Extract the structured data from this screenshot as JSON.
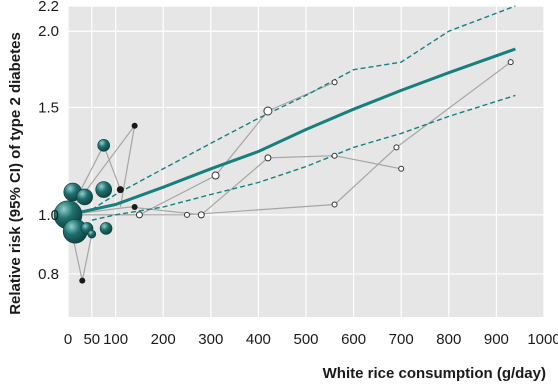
{
  "chart_data": {
    "type": "scatter",
    "xlabel": "White rice consumption (g/day)",
    "ylabel": "Relative risk (95% CI) of type 2 diabetes",
    "xlim": [
      0,
      1000
    ],
    "ylim": [
      0.68,
      2.2
    ],
    "y_scale": "log",
    "xticks": [
      0,
      50,
      100,
      200,
      300,
      400,
      500,
      600,
      700,
      800,
      900,
      1000
    ],
    "xtick_labels": [
      "0",
      "50",
      "100",
      "200",
      "300",
      "400",
      "500",
      "600",
      "700",
      "800",
      "900",
      "1000"
    ],
    "yticks": [
      0.8,
      1.0,
      1.5,
      2.0,
      2.2
    ],
    "ytick_labels": [
      "0.8",
      "1.0",
      "1.5",
      "2.0",
      "2.2"
    ],
    "grid": true,
    "background": "#e6e6e6",
    "colors": {
      "fit": "#17807e",
      "ci": "#17807e",
      "study_lines": "#a6a6a6",
      "bubble": "#1f6f6e",
      "bubble_highlight": "#8fd0cc",
      "small_marker": "#1a1a1a",
      "open_marker_fill": "#ffffff"
    },
    "fit": {
      "x": [
        0,
        100,
        200,
        300,
        400,
        500,
        600,
        700,
        800,
        940
      ],
      "y": [
        1.0,
        1.04,
        1.11,
        1.19,
        1.27,
        1.38,
        1.49,
        1.6,
        1.71,
        1.87
      ]
    },
    "ci_upper": {
      "x": [
        50,
        100,
        200,
        300,
        400,
        500,
        600,
        700,
        800,
        940
      ],
      "y": [
        1.02,
        1.08,
        1.19,
        1.31,
        1.44,
        1.57,
        1.73,
        1.78,
        2.0,
        2.2
      ]
    },
    "ci_lower": {
      "x": [
        50,
        100,
        200,
        300,
        400,
        500,
        600,
        700,
        800,
        940
      ],
      "y": [
        0.98,
        1.0,
        1.03,
        1.08,
        1.13,
        1.2,
        1.29,
        1.36,
        1.45,
        1.57
      ]
    },
    "studies": [
      {
        "points": [
          [
            0,
            1.0
          ],
          [
            130,
            1.03
          ],
          [
            280,
            1.0
          ],
          [
            420,
            1.24
          ],
          [
            560,
            1.25
          ],
          [
            700,
            1.19
          ]
        ]
      },
      {
        "points": [
          [
            0,
            1.0
          ],
          [
            150,
            1.0
          ],
          [
            310,
            1.16
          ],
          [
            420,
            1.48
          ],
          [
            560,
            1.65
          ]
        ]
      },
      {
        "points": [
          [
            0,
            1.0
          ],
          [
            150,
            1.0
          ],
          [
            250,
            1.0
          ],
          [
            560,
            1.04
          ],
          [
            690,
            1.29
          ],
          [
            930,
            1.78
          ]
        ]
      },
      {
        "points": [
          [
            0,
            1.0
          ],
          [
            75,
            1.3
          ],
          [
            110,
            1.1
          ]
        ]
      },
      {
        "points": [
          [
            0,
            1.0
          ],
          [
            140,
            1.4
          ],
          [
            110,
            1.03
          ]
        ]
      },
      {
        "points": [
          [
            0,
            1.0
          ],
          [
            30,
            0.78
          ],
          [
            50,
            0.93
          ]
        ]
      }
    ],
    "bubbles": [
      {
        "x": 0,
        "y": 1.0,
        "size": 14
      },
      {
        "x": 15,
        "y": 0.94,
        "size": 12
      },
      {
        "x": 10,
        "y": 1.09,
        "size": 9
      },
      {
        "x": 35,
        "y": 1.07,
        "size": 8
      },
      {
        "x": 40,
        "y": 0.95,
        "size": 6
      },
      {
        "x": 50,
        "y": 0.93,
        "size": 4
      },
      {
        "x": 75,
        "y": 1.1,
        "size": 8
      },
      {
        "x": 75,
        "y": 1.3,
        "size": 6
      },
      {
        "x": 80,
        "y": 0.95,
        "size": 6
      },
      {
        "x": 110,
        "y": 1.1,
        "size": 3.5
      },
      {
        "x": 140,
        "y": 1.4,
        "size": 3
      },
      {
        "x": 140,
        "y": 1.03,
        "size": 3
      },
      {
        "x": 30,
        "y": 0.78,
        "size": 3
      }
    ],
    "open_points": [
      {
        "x": 150,
        "y": 1.0,
        "size": 3
      },
      {
        "x": 250,
        "y": 1.0,
        "size": 2.5
      },
      {
        "x": 280,
        "y": 1.0,
        "size": 3
      },
      {
        "x": 310,
        "y": 1.16,
        "size": 3.5
      },
      {
        "x": 420,
        "y": 1.48,
        "size": 4
      },
      {
        "x": 420,
        "y": 1.24,
        "size": 3
      },
      {
        "x": 560,
        "y": 1.65,
        "size": 2.5
      },
      {
        "x": 560,
        "y": 1.25,
        "size": 2.5
      },
      {
        "x": 560,
        "y": 1.04,
        "size": 2.5
      },
      {
        "x": 690,
        "y": 1.29,
        "size": 2.5
      },
      {
        "x": 700,
        "y": 1.19,
        "size": 2.5
      },
      {
        "x": 930,
        "y": 1.78,
        "size": 2.5
      }
    ]
  }
}
